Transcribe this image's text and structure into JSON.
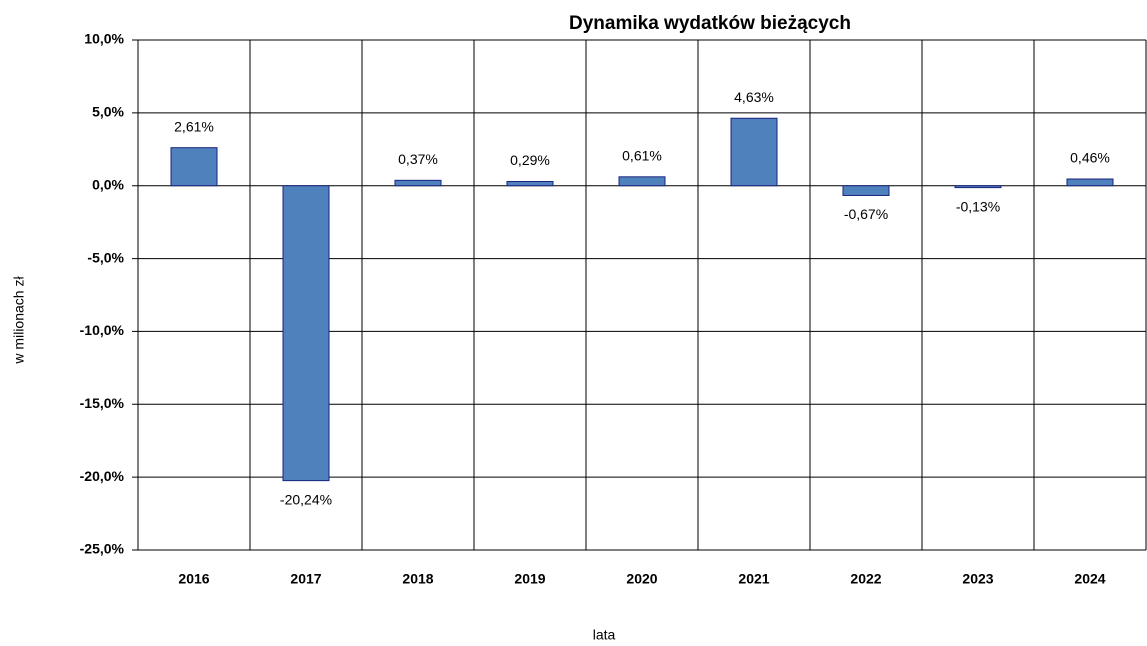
{
  "chart_data": {
    "type": "bar",
    "title": "Dynamika wydatków bieżących",
    "x_label": "lata",
    "y_label": "w milionach zł",
    "categories": [
      "2016",
      "2017",
      "2018",
      "2019",
      "2020",
      "2021",
      "2022",
      "2023",
      "2024"
    ],
    "values": [
      2.61,
      -20.24,
      0.37,
      0.29,
      0.61,
      4.63,
      -0.67,
      -0.13,
      0.46
    ],
    "value_labels": [
      "2,61%",
      "-20,24%",
      "0,37%",
      "0,29%",
      "0,61%",
      "4,63%",
      "-0,67%",
      "-0,13%",
      "0,46%"
    ],
    "color": "#4f81bd",
    "edge_color": "#1a237e",
    "ylim": [
      -25,
      10
    ],
    "yticks": [
      {
        "value": -25,
        "label": "-25,0%"
      },
      {
        "value": -20,
        "label": "-20,0%"
      },
      {
        "value": -15,
        "label": "-15,0%"
      },
      {
        "value": -10,
        "label": "-10,0%"
      },
      {
        "value": -5,
        "label": "-5,0%"
      },
      {
        "value": 0,
        "label": "0,0%"
      },
      {
        "value": 5,
        "label": "5,0%"
      },
      {
        "value": 10,
        "label": "10,0%"
      }
    ],
    "grid": true
  }
}
